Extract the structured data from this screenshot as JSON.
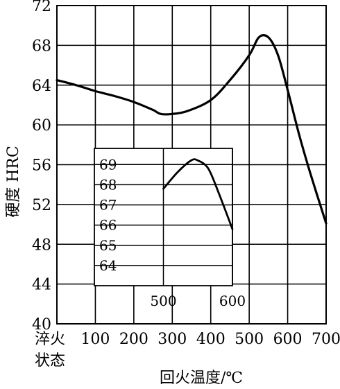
{
  "chart_data": [
    {
      "type": "line",
      "title": "",
      "xlabel": "回火温度/℃",
      "ylabel": "硬度 HRC",
      "x_categories_label": [
        "淬火",
        "状态"
      ],
      "xlim": [
        0,
        700
      ],
      "ylim": [
        40,
        72
      ],
      "x_ticks": [
        "100",
        "200",
        "300",
        "400",
        "500",
        "600",
        "700"
      ],
      "y_ticks": [
        "40",
        "44",
        "48",
        "52",
        "56",
        "60",
        "64",
        "68",
        "72"
      ],
      "grid": true,
      "series": [
        {
          "x": [
            0,
            50,
            100,
            150,
            200,
            250,
            270,
            300,
            340,
            400,
            450,
            500,
            525,
            550,
            575,
            600,
            630,
            660,
            700
          ],
          "y": [
            64.5,
            64.0,
            63.4,
            62.9,
            62.3,
            61.5,
            61.1,
            61.1,
            61.4,
            62.5,
            64.5,
            67.0,
            68.8,
            68.8,
            67.0,
            63.5,
            59.0,
            55.0,
            50.1
          ]
        }
      ]
    },
    {
      "type": "line",
      "title": "",
      "xlabel": "",
      "ylabel": "",
      "xlim": [
        400,
        600
      ],
      "ylim": [
        63,
        69.8
      ],
      "x_ticks": [
        "500",
        "600"
      ],
      "y_ticks": [
        "64",
        "65",
        "66",
        "67",
        "68",
        "69"
      ],
      "grid": true,
      "series": [
        {
          "x": [
            500,
            520,
            540,
            550,
            565,
            580,
            600
          ],
          "y": [
            67.8,
            68.6,
            69.2,
            69.2,
            68.8,
            67.6,
            65.8
          ]
        }
      ]
    }
  ]
}
